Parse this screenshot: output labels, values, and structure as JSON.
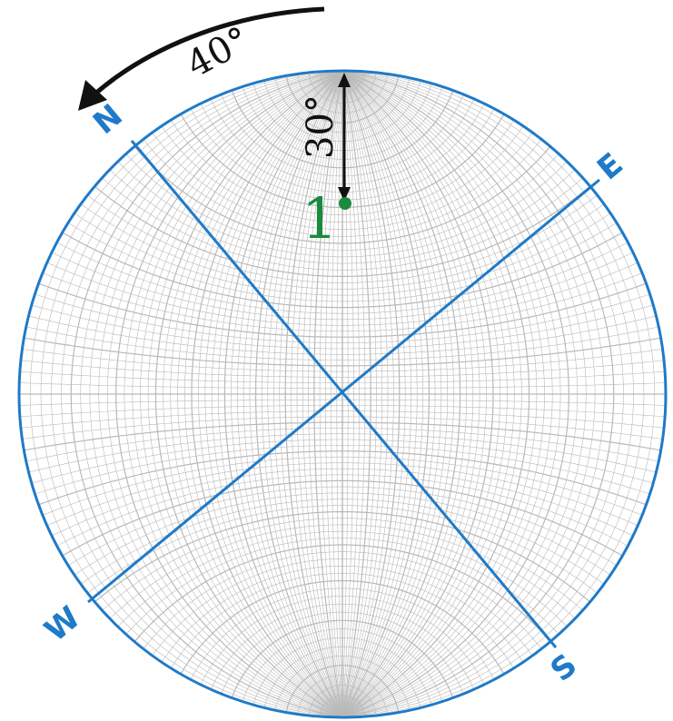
{
  "directions": {
    "north": "N",
    "east": "E",
    "south": "S",
    "west": "W"
  },
  "rotation_angle": "40°",
  "tilt_angle": "30°",
  "point_label": "1",
  "colors": {
    "axis_lines": "#1f7ac8",
    "grid": "#b9b9b9",
    "arrow": "#111111",
    "point": "#1a8a3e"
  },
  "icons": {
    "rotation_arrow": "curved-arrow-counterclockwise",
    "tilt_arrow": "double-headed-vertical-arrow"
  }
}
